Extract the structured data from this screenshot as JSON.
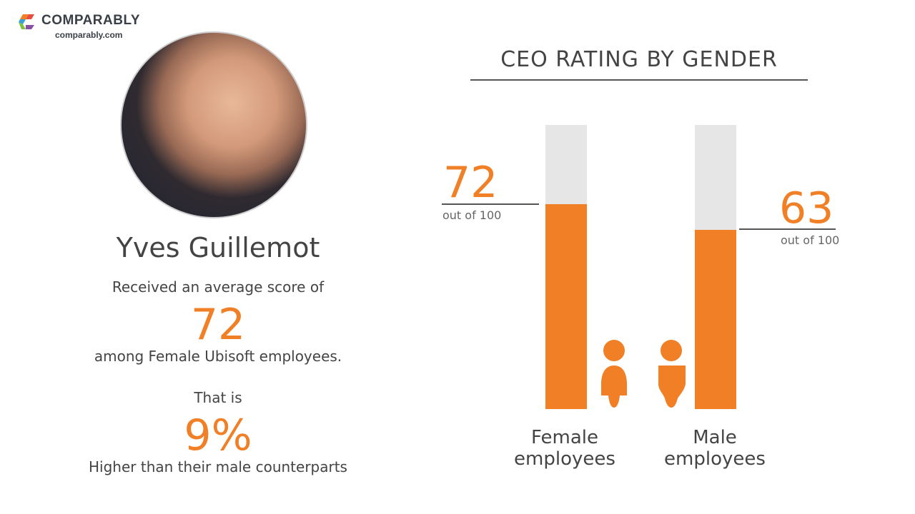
{
  "logo": {
    "brand": "COMPARABLY",
    "url": "comparably.com"
  },
  "person": {
    "name": "Yves Guillemot"
  },
  "summary": {
    "line1": "Received an average score of",
    "score": "72",
    "line2": "among Female Ubisoft employees.",
    "line3": "That is",
    "difference": "9%",
    "line4": "Higher than their male counterparts"
  },
  "chart_data": {
    "type": "bar",
    "title": "CEO RATING BY GENDER",
    "categories": [
      "Female employees",
      "Male employees"
    ],
    "values": [
      72,
      63
    ],
    "value_labels": [
      "72",
      "63"
    ],
    "out_of_label": "out of 100",
    "ylim": [
      0,
      100
    ],
    "colors": {
      "fill": "#f07f26",
      "track": "#e6e6e6"
    }
  }
}
